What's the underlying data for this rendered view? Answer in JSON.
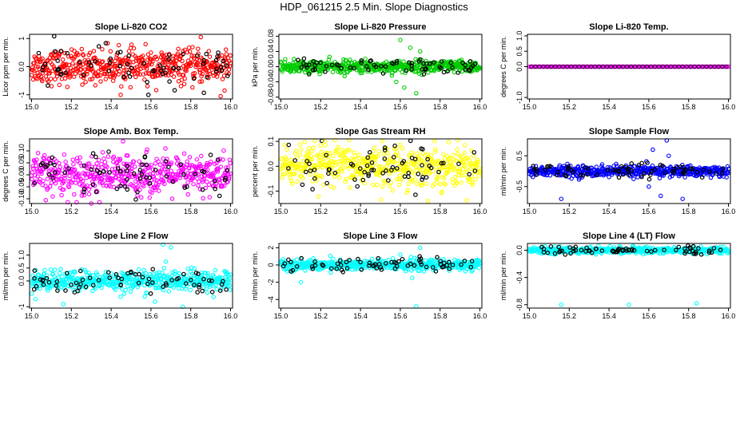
{
  "page": {
    "title": "HDP_061215  2.5 Min. Slope Diagnostics"
  },
  "chart_data": [
    {
      "type": "scatter",
      "title": "Slope Li-820 CO2",
      "xlabel": "",
      "ylabel": "Licor ppm per min.",
      "xlim": [
        14.99,
        16.01
      ],
      "ylim": [
        -1.15,
        1.15
      ],
      "x_ticks": [
        "15.0",
        "15.2",
        "15.4",
        "15.6",
        "15.8",
        "16.0"
      ],
      "y_ticks": [
        "-1",
        "0.0",
        "1"
      ],
      "color": "#ff0000",
      "spread": 0.32,
      "n": 520,
      "outliers": [
        [
          15.85,
          1.05
        ],
        [
          15.95,
          -1.05
        ],
        [
          15.97,
          -0.85
        ],
        [
          15.18,
          -0.72
        ]
      ]
    },
    {
      "type": "scatter",
      "title": "Slope Li-820 Pressure",
      "xlabel": "",
      "ylabel": "kPa per min.",
      "xlim": [
        14.99,
        16.01
      ],
      "ylim": [
        -0.085,
        0.085
      ],
      "x_ticks": [
        "15.0",
        "15.2",
        "15.4",
        "15.6",
        "15.8",
        "16.0"
      ],
      "y_ticks": [
        "-0.08",
        "-0.04",
        "0.00",
        "0.04",
        "0.08"
      ],
      "color": "#00cc00",
      "spread": 0.009,
      "n": 520,
      "outliers": [
        [
          15.6,
          0.07
        ],
        [
          15.62,
          -0.055
        ],
        [
          15.68,
          -0.07
        ],
        [
          15.65,
          0.05
        ],
        [
          15.58,
          -0.04
        ],
        [
          15.7,
          0.04
        ],
        [
          15.32,
          -0.025
        ]
      ]
    },
    {
      "type": "scatter",
      "title": "Slope Li-820 Temp.",
      "xlabel": "",
      "ylabel": "degrees C per min.",
      "xlim": [
        14.99,
        16.01
      ],
      "ylim": [
        -1.05,
        1.05
      ],
      "x_ticks": [
        "15.0",
        "15.2",
        "15.4",
        "15.6",
        "15.8",
        "16.0"
      ],
      "y_ticks": [
        "-1.0",
        "0.0",
        "0.5",
        "1.0"
      ],
      "color": "#ff00ff",
      "spread": 0.0,
      "n": 150,
      "outliers": []
    },
    {
      "type": "scatter",
      "title": "Slope Amb. Box Temp.",
      "xlabel": "",
      "ylabel": "degrees C per min.",
      "xlim": [
        14.99,
        16.01
      ],
      "ylim": [
        -0.12,
        0.15
      ],
      "x_ticks": [
        "15.0",
        "15.2",
        "15.4",
        "15.6",
        "15.8",
        "16.0"
      ],
      "y_ticks": [
        "-0.10",
        "-0.05",
        "0.00",
        "0.05",
        "0.10"
      ],
      "color": "#ff00ff",
      "spread": 0.045,
      "n": 520,
      "outliers": [
        [
          15.46,
          0.14
        ],
        [
          15.3,
          -0.12
        ]
      ]
    },
    {
      "type": "scatter",
      "title": "Slope Gas Stream RH",
      "xlabel": "",
      "ylabel": "percent per min.",
      "xlim": [
        14.99,
        16.01
      ],
      "ylim": [
        -0.15,
        0.11
      ],
      "x_ticks": [
        "15.0",
        "15.2",
        "15.4",
        "15.6",
        "15.8",
        "16.0"
      ],
      "y_ticks": [
        "-0.1",
        "0.0",
        "0.1"
      ],
      "color": "#ffff00",
      "spread": 0.045,
      "n": 520,
      "outliers": [
        [
          15.22,
          0.1
        ],
        [
          15.74,
          -0.14
        ]
      ]
    },
    {
      "type": "scatter",
      "title": "Slope Sample Flow",
      "xlabel": "",
      "ylabel": "ml/min per min.",
      "xlim": [
        14.99,
        16.01
      ],
      "ylim": [
        -1.05,
        1.05
      ],
      "x_ticks": [
        "15.0",
        "15.2",
        "15.4",
        "15.6",
        "15.8",
        "16.0"
      ],
      "y_ticks": [
        "-0.5",
        "0.5"
      ],
      "color": "#0000ff",
      "spread": 0.1,
      "n": 520,
      "outliers": [
        [
          15.69,
          1.0
        ],
        [
          15.62,
          0.7
        ],
        [
          15.66,
          -0.8
        ],
        [
          15.77,
          -0.9
        ],
        [
          15.16,
          -0.9
        ],
        [
          15.6,
          -0.5
        ],
        [
          15.7,
          0.5
        ]
      ]
    },
    {
      "type": "scatter",
      "title": "Slope Line 2 Flow",
      "xlabel": "",
      "ylabel": "ml/min per min.",
      "xlim": [
        14.99,
        16.01
      ],
      "ylim": [
        -1.05,
        1.45
      ],
      "x_ticks": [
        "15.0",
        "15.2",
        "15.4",
        "15.6",
        "15.8",
        "16.0"
      ],
      "y_ticks": [
        "-1",
        "0.0",
        "0.5",
        "1.0"
      ],
      "color": "#00ffff",
      "spread": 0.22,
      "n": 520,
      "outliers": [
        [
          15.66,
          1.4
        ],
        [
          15.7,
          1.3
        ],
        [
          15.16,
          -0.9
        ],
        [
          15.62,
          -0.8
        ],
        [
          15.76,
          -1.0
        ],
        [
          15.02,
          -0.7
        ]
      ]
    },
    {
      "type": "scatter",
      "title": "Slope Line 3 Flow",
      "xlabel": "",
      "ylabel": "ml/min per min.",
      "xlim": [
        14.99,
        16.01
      ],
      "ylim": [
        -5.0,
        2.5
      ],
      "x_ticks": [
        "15.0",
        "15.2",
        "15.4",
        "15.6",
        "15.8",
        "16.0"
      ],
      "y_ticks": [
        "-4",
        "-2",
        "0",
        "2"
      ],
      "color": "#00ffff",
      "spread": 0.35,
      "n": 520,
      "outliers": [
        [
          15.68,
          -4.8
        ],
        [
          15.7,
          2.0
        ],
        [
          15.66,
          -1.5
        ],
        [
          15.1,
          -2.0
        ],
        [
          15.6,
          1.2
        ]
      ]
    },
    {
      "type": "scatter",
      "title": "Slope Line 4 (LT) Flow",
      "xlabel": "",
      "ylabel": "ml/min per min.",
      "xlim": [
        14.99,
        16.01
      ],
      "ylim": [
        -0.85,
        0.1
      ],
      "x_ticks": [
        "15.0",
        "15.2",
        "15.4",
        "15.6",
        "15.8",
        "16.0"
      ],
      "y_ticks": [
        "-0.8",
        "-0.4",
        "0.0"
      ],
      "color": "#00ffff",
      "spread": 0.025,
      "n": 520,
      "outliers": [
        [
          15.16,
          -0.8
        ],
        [
          15.5,
          -0.8
        ],
        [
          15.84,
          -0.78
        ]
      ]
    }
  ]
}
